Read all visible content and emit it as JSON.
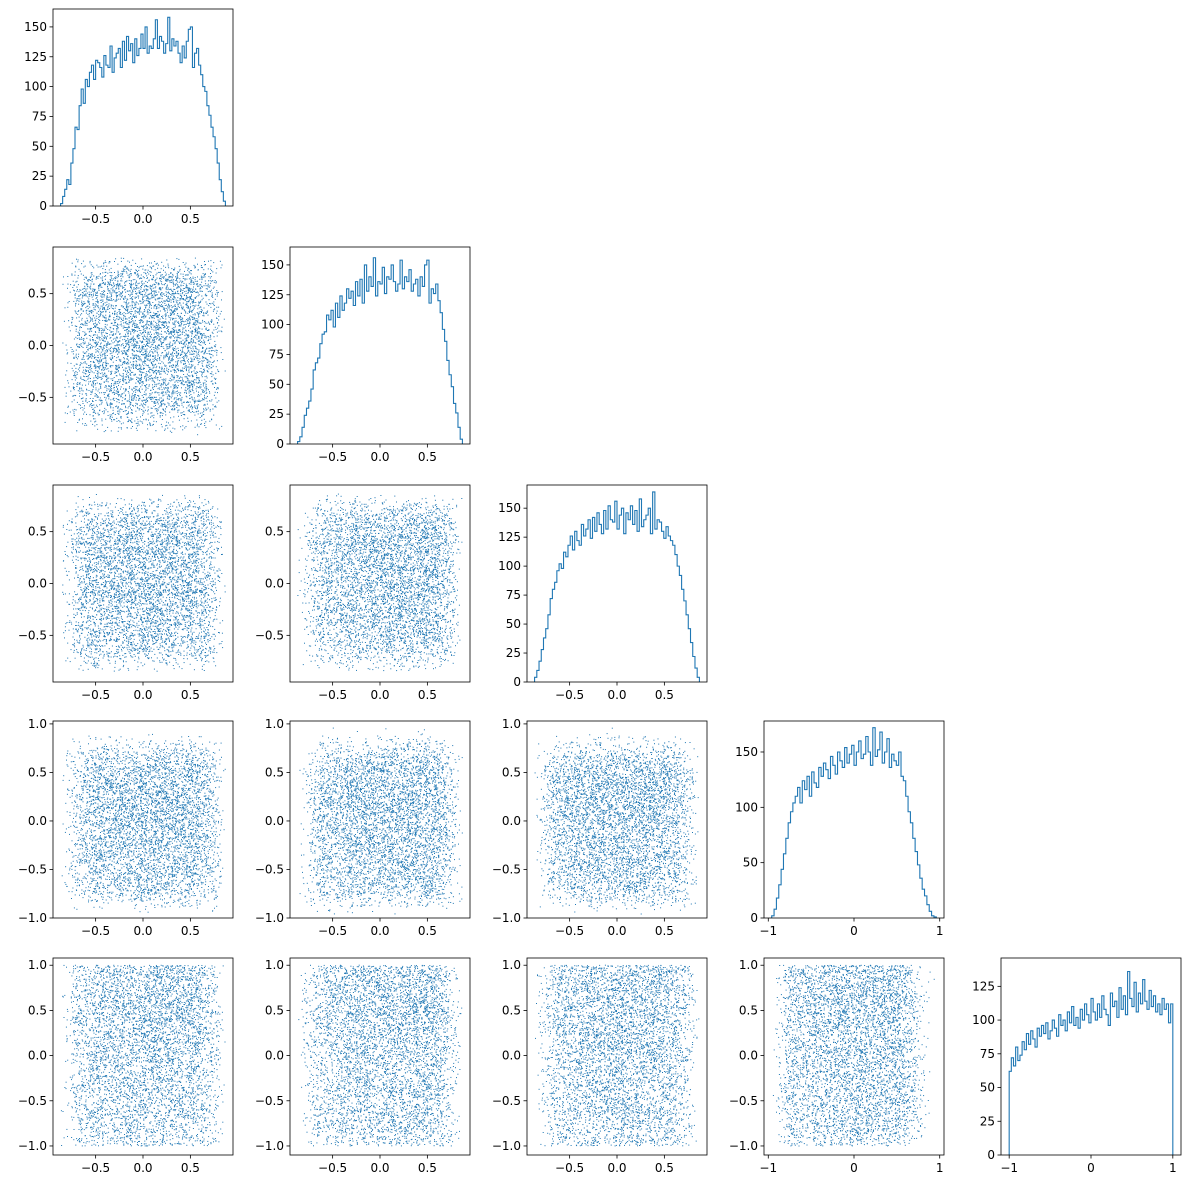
{
  "figure": {
    "type": "corner_plot",
    "hist_color": "#1f77b4",
    "point_color": "#1f77b4",
    "frame_color": "#000000",
    "background": "#ffffff"
  },
  "chart_data": [
    {
      "id": "hist-1",
      "type": "histogram",
      "row": 1,
      "col": 1,
      "title": "",
      "xlabel": "",
      "ylabel": "",
      "xlim": [
        -0.95,
        0.95
      ],
      "ylim": [
        0,
        165
      ],
      "xticks": [
        -0.5,
        0.0,
        0.5
      ],
      "xticklabels": [
        "−0.5",
        "0.0",
        "0.5"
      ],
      "yticks": [
        0,
        25,
        50,
        75,
        100,
        125,
        150
      ],
      "yticklabels": [
        "0",
        "25",
        "50",
        "75",
        "100",
        "125",
        "150"
      ],
      "bins": {
        "x_min": -0.87,
        "x_max": 0.87
      },
      "counts": [
        2,
        8,
        14,
        22,
        18,
        36,
        48,
        66,
        64,
        84,
        98,
        86,
        106,
        100,
        112,
        118,
        106,
        122,
        120,
        116,
        108,
        126,
        118,
        116,
        134,
        112,
        124,
        128,
        132,
        116,
        138,
        122,
        142,
        130,
        136,
        120,
        140,
        126,
        132,
        144,
        132,
        150,
        128,
        134,
        132,
        140,
        156,
        132,
        142,
        138,
        128,
        136,
        158,
        130,
        140,
        134,
        138,
        128,
        120,
        134,
        124,
        138,
        148,
        150,
        116,
        128,
        132,
        118,
        110,
        100,
        96,
        84,
        76,
        66,
        58,
        48,
        36,
        22,
        12,
        4
      ]
    },
    {
      "id": "hist-2",
      "type": "histogram",
      "row": 2,
      "col": 2,
      "title": "",
      "xlabel": "",
      "ylabel": "",
      "xlim": [
        -0.95,
        0.95
      ],
      "ylim": [
        0,
        165
      ],
      "xticks": [
        -0.5,
        0.0,
        0.5
      ],
      "xticklabels": [
        "−0.5",
        "0.0",
        "0.5"
      ],
      "yticks": [
        0,
        25,
        50,
        75,
        100,
        125,
        150
      ],
      "yticklabels": [
        "0",
        "25",
        "50",
        "75",
        "100",
        "125",
        "150"
      ],
      "bins": {
        "x_min": -0.87,
        "x_max": 0.87
      },
      "counts": [
        2,
        6,
        14,
        24,
        30,
        36,
        46,
        62,
        68,
        72,
        84,
        92,
        94,
        108,
        104,
        112,
        98,
        118,
        106,
        124,
        112,
        118,
        130,
        122,
        128,
        116,
        136,
        124,
        138,
        118,
        150,
        128,
        140,
        132,
        156,
        124,
        136,
        134,
        148,
        126,
        140,
        138,
        150,
        136,
        128,
        134,
        154,
        130,
        140,
        136,
        146,
        128,
        134,
        138,
        124,
        140,
        132,
        150,
        154,
        118,
        130,
        126,
        134,
        120,
        110,
        96,
        86,
        70,
        58,
        48,
        34,
        26,
        14,
        4
      ]
    },
    {
      "id": "hist-3",
      "type": "histogram",
      "row": 3,
      "col": 3,
      "title": "",
      "xlabel": "",
      "ylabel": "",
      "xlim": [
        -0.95,
        0.95
      ],
      "ylim": [
        0,
        170
      ],
      "xticks": [
        -0.5,
        0.0,
        0.5
      ],
      "xticklabels": [
        "−0.5",
        "0.0",
        "0.5"
      ],
      "yticks": [
        0,
        25,
        50,
        75,
        100,
        125,
        150
      ],
      "yticklabels": [
        "0",
        "25",
        "50",
        "75",
        "100",
        "125",
        "150"
      ],
      "bins": {
        "x_min": -0.87,
        "x_max": 0.87
      },
      "counts": [
        4,
        10,
        18,
        28,
        38,
        46,
        58,
        72,
        80,
        86,
        96,
        102,
        98,
        112,
        108,
        118,
        126,
        114,
        130,
        122,
        118,
        136,
        126,
        132,
        140,
        124,
        142,
        130,
        146,
        136,
        128,
        148,
        132,
        152,
        140,
        138,
        156,
        132,
        144,
        150,
        128,
        146,
        140,
        152,
        136,
        148,
        130,
        158,
        134,
        140,
        144,
        150,
        128,
        164,
        132,
        140,
        138,
        130,
        124,
        134,
        126,
        122,
        118,
        110,
        100,
        92,
        80,
        70,
        58,
        46,
        34,
        22,
        12,
        4
      ]
    },
    {
      "id": "hist-4",
      "type": "histogram",
      "row": 4,
      "col": 4,
      "title": "",
      "xlabel": "",
      "ylabel": "",
      "xlim": [
        -1.05,
        1.05
      ],
      "ylim": [
        0,
        178
      ],
      "xticks": [
        -1,
        0,
        1
      ],
      "xticklabels": [
        "−1",
        "0",
        "1"
      ],
      "yticks": [
        0,
        50,
        100,
        150
      ],
      "yticklabels": [
        "0",
        "50",
        "100",
        "150"
      ],
      "bins": {
        "x_min": -0.96,
        "x_max": 0.96
      },
      "counts": [
        2,
        8,
        18,
        30,
        44,
        58,
        72,
        86,
        96,
        104,
        110,
        118,
        104,
        124,
        116,
        128,
        110,
        132,
        122,
        118,
        136,
        128,
        140,
        134,
        126,
        146,
        138,
        130,
        150,
        142,
        136,
        154,
        140,
        148,
        156,
        138,
        150,
        160,
        144,
        148,
        164,
        150,
        138,
        172,
        146,
        152,
        168,
        140,
        150,
        162,
        136,
        148,
        142,
        138,
        150,
        128,
        124,
        110,
        96,
        86,
        72,
        60,
        48,
        36,
        26,
        20,
        12,
        6,
        2,
        1
      ]
    },
    {
      "id": "hist-5",
      "type": "histogram",
      "row": 5,
      "col": 5,
      "title": "",
      "xlabel": "",
      "ylabel": "",
      "xlim": [
        -1.1,
        1.1
      ],
      "ylim": [
        0,
        146
      ],
      "xticks": [
        -1,
        0,
        1
      ],
      "xticklabels": [
        "−1",
        "0",
        "1"
      ],
      "yticks": [
        0,
        25,
        50,
        75,
        100,
        125
      ],
      "yticklabels": [
        "0",
        "25",
        "50",
        "75",
        "100",
        "125"
      ],
      "bins": {
        "x_min": -1.0,
        "x_max": 1.0
      },
      "counts": [
        62,
        72,
        66,
        80,
        70,
        74,
        84,
        78,
        90,
        82,
        92,
        86,
        80,
        94,
        88,
        96,
        90,
        98,
        86,
        92,
        100,
        94,
        88,
        104,
        96,
        100,
        92,
        106,
        98,
        110,
        96,
        102,
        94,
        108,
        100,
        112,
        104,
        98,
        116,
        106,
        100,
        112,
        102,
        118,
        108,
        104,
        96,
        120,
        110,
        114,
        102,
        124,
        108,
        118,
        104,
        136,
        116,
        110,
        128,
        106,
        120,
        112,
        130,
        114,
        108,
        122,
        110,
        118,
        106,
        112,
        104,
        116,
        108,
        112,
        98,
        112
      ]
    },
    {
      "id": "scatter-2-1",
      "type": "scatter",
      "row": 2,
      "col": 1,
      "title": "",
      "xlabel": "",
      "ylabel": "",
      "xlim": [
        -0.95,
        0.95
      ],
      "ylim": [
        -0.95,
        0.95
      ],
      "xticks": [
        -0.5,
        0.0,
        0.5
      ],
      "xticklabels": [
        "−0.5",
        "0.0",
        "0.5"
      ],
      "yticks": [
        -0.5,
        0.0,
        0.5
      ],
      "yticklabels": [
        "−0.5",
        "0.0",
        "0.5"
      ],
      "points": {
        "n": 5000,
        "x_marginal": "hist-1",
        "y_marginal": "hist-2",
        "seed": 11
      }
    },
    {
      "id": "scatter-3-1",
      "type": "scatter",
      "row": 3,
      "col": 1,
      "title": "",
      "xlabel": "",
      "ylabel": "",
      "xlim": [
        -0.95,
        0.95
      ],
      "ylim": [
        -0.95,
        0.95
      ],
      "xticks": [
        -0.5,
        0.0,
        0.5
      ],
      "xticklabels": [
        "−0.5",
        "0.0",
        "0.5"
      ],
      "yticks": [
        -0.5,
        0.0,
        0.5
      ],
      "yticklabels": [
        "−0.5",
        "0.0",
        "0.5"
      ],
      "points": {
        "n": 5000,
        "x_marginal": "hist-1",
        "y_marginal": "hist-3",
        "seed": 12
      }
    },
    {
      "id": "scatter-3-2",
      "type": "scatter",
      "row": 3,
      "col": 2,
      "title": "",
      "xlabel": "",
      "ylabel": "",
      "xlim": [
        -0.95,
        0.95
      ],
      "ylim": [
        -0.95,
        0.95
      ],
      "xticks": [
        -0.5,
        0.0,
        0.5
      ],
      "xticklabels": [
        "−0.5",
        "0.0",
        "0.5"
      ],
      "yticks": [
        -0.5,
        0.0,
        0.5
      ],
      "yticklabels": [
        "−0.5",
        "0.0",
        "0.5"
      ],
      "points": {
        "n": 5000,
        "x_marginal": "hist-2",
        "y_marginal": "hist-3",
        "seed": 13
      }
    },
    {
      "id": "scatter-4-1",
      "type": "scatter",
      "row": 4,
      "col": 1,
      "title": "",
      "xlabel": "",
      "ylabel": "",
      "xlim": [
        -0.95,
        0.95
      ],
      "ylim": [
        -1.0,
        1.03
      ],
      "xticks": [
        -0.5,
        0.0,
        0.5
      ],
      "xticklabels": [
        "−0.5",
        "0.0",
        "0.5"
      ],
      "yticks": [
        -1.0,
        -0.5,
        0.0,
        0.5,
        1.0
      ],
      "yticklabels": [
        "−1.0",
        "−0.5",
        "0.0",
        "0.5",
        "1.0"
      ],
      "points": {
        "n": 5000,
        "x_marginal": "hist-1",
        "y_marginal": "hist-4",
        "seed": 14
      }
    },
    {
      "id": "scatter-4-2",
      "type": "scatter",
      "row": 4,
      "col": 2,
      "title": "",
      "xlabel": "",
      "ylabel": "",
      "xlim": [
        -0.95,
        0.95
      ],
      "ylim": [
        -1.0,
        1.03
      ],
      "xticks": [
        -0.5,
        0.0,
        0.5
      ],
      "xticklabels": [
        "−0.5",
        "0.0",
        "0.5"
      ],
      "yticks": [
        -1.0,
        -0.5,
        0.0,
        0.5,
        1.0
      ],
      "yticklabels": [
        "−1.0",
        "−0.5",
        "0.0",
        "0.5",
        "1.0"
      ],
      "points": {
        "n": 5000,
        "x_marginal": "hist-2",
        "y_marginal": "hist-4",
        "seed": 15
      }
    },
    {
      "id": "scatter-4-3",
      "type": "scatter",
      "row": 4,
      "col": 3,
      "title": "",
      "xlabel": "",
      "ylabel": "",
      "xlim": [
        -0.95,
        0.95
      ],
      "ylim": [
        -1.0,
        1.03
      ],
      "xticks": [
        -0.5,
        0.0,
        0.5
      ],
      "xticklabels": [
        "−0.5",
        "0.0",
        "0.5"
      ],
      "yticks": [
        -1.0,
        -0.5,
        0.0,
        0.5,
        1.0
      ],
      "yticklabels": [
        "−1.0",
        "−0.5",
        "0.0",
        "0.5",
        "1.0"
      ],
      "points": {
        "n": 5000,
        "x_marginal": "hist-3",
        "y_marginal": "hist-4",
        "seed": 16
      }
    },
    {
      "id": "scatter-5-1",
      "type": "scatter",
      "row": 5,
      "col": 1,
      "title": "",
      "xlabel": "",
      "ylabel": "",
      "xlim": [
        -0.95,
        0.95
      ],
      "ylim": [
        -1.1,
        1.08
      ],
      "xticks": [
        -0.5,
        0.0,
        0.5
      ],
      "xticklabels": [
        "−0.5",
        "0.0",
        "0.5"
      ],
      "yticks": [
        -1.0,
        -0.5,
        0.0,
        0.5,
        1.0
      ],
      "yticklabels": [
        "−1.0",
        "−0.5",
        "0.0",
        "0.5",
        "1.0"
      ],
      "points": {
        "n": 5000,
        "x_marginal": "hist-1",
        "y_marginal": "hist-5",
        "seed": 17
      }
    },
    {
      "id": "scatter-5-2",
      "type": "scatter",
      "row": 5,
      "col": 2,
      "title": "",
      "xlabel": "",
      "ylabel": "",
      "xlim": [
        -0.95,
        0.95
      ],
      "ylim": [
        -1.1,
        1.08
      ],
      "xticks": [
        -0.5,
        0.0,
        0.5
      ],
      "xticklabels": [
        "−0.5",
        "0.0",
        "0.5"
      ],
      "yticks": [
        -1.0,
        -0.5,
        0.0,
        0.5,
        1.0
      ],
      "yticklabels": [
        "−1.0",
        "−0.5",
        "0.0",
        "0.5",
        "1.0"
      ],
      "points": {
        "n": 5000,
        "x_marginal": "hist-2",
        "y_marginal": "hist-5",
        "seed": 18
      }
    },
    {
      "id": "scatter-5-3",
      "type": "scatter",
      "row": 5,
      "col": 3,
      "title": "",
      "xlabel": "",
      "ylabel": "",
      "xlim": [
        -0.95,
        0.95
      ],
      "ylim": [
        -1.1,
        1.08
      ],
      "xticks": [
        -0.5,
        0.0,
        0.5
      ],
      "xticklabels": [
        "−0.5",
        "0.0",
        "0.5"
      ],
      "yticks": [
        -1.0,
        -0.5,
        0.0,
        0.5,
        1.0
      ],
      "yticklabels": [
        "−1.0",
        "−0.5",
        "0.0",
        "0.5",
        "1.0"
      ],
      "points": {
        "n": 5000,
        "x_marginal": "hist-3",
        "y_marginal": "hist-5",
        "seed": 19
      }
    },
    {
      "id": "scatter-5-4",
      "type": "scatter",
      "row": 5,
      "col": 4,
      "title": "",
      "xlabel": "",
      "ylabel": "",
      "xlim": [
        -1.05,
        1.05
      ],
      "ylim": [
        -1.1,
        1.08
      ],
      "xticks": [
        -1,
        0,
        1
      ],
      "xticklabels": [
        "−1",
        "0",
        "1"
      ],
      "yticks": [
        -1.0,
        -0.5,
        0.0,
        0.5,
        1.0
      ],
      "yticklabels": [
        "−1.0",
        "−0.5",
        "0.0",
        "0.5",
        "1.0"
      ],
      "points": {
        "n": 5000,
        "x_marginal": "hist-4",
        "y_marginal": "hist-5",
        "seed": 20
      }
    }
  ]
}
